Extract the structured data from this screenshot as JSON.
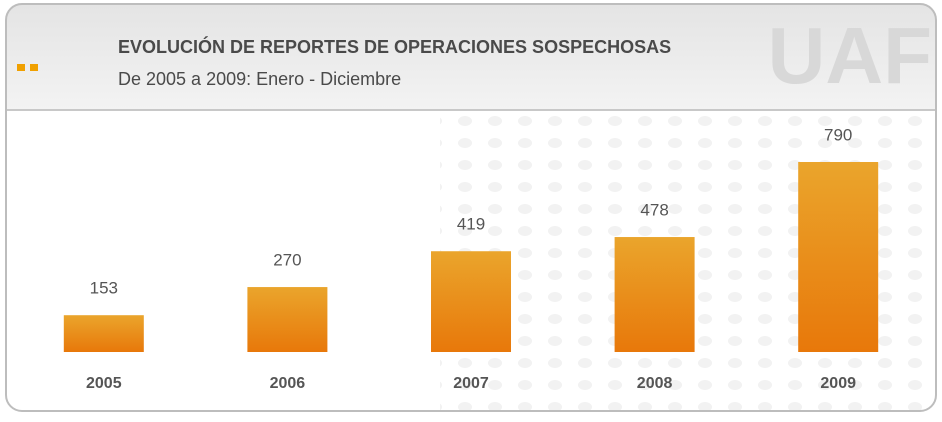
{
  "logo": "UAF",
  "chart_data": {
    "type": "bar",
    "title": "EVOLUCIÓN DE REPORTES DE OPERACIONES SOSPECHOSAS",
    "subtitle": "De 2005 a 2009: Enero - Diciembre",
    "categories": [
      "2005",
      "2006",
      "2007",
      "2008",
      "2009"
    ],
    "values": [
      153,
      270,
      419,
      478,
      790
    ],
    "color": "#e98a14"
  }
}
